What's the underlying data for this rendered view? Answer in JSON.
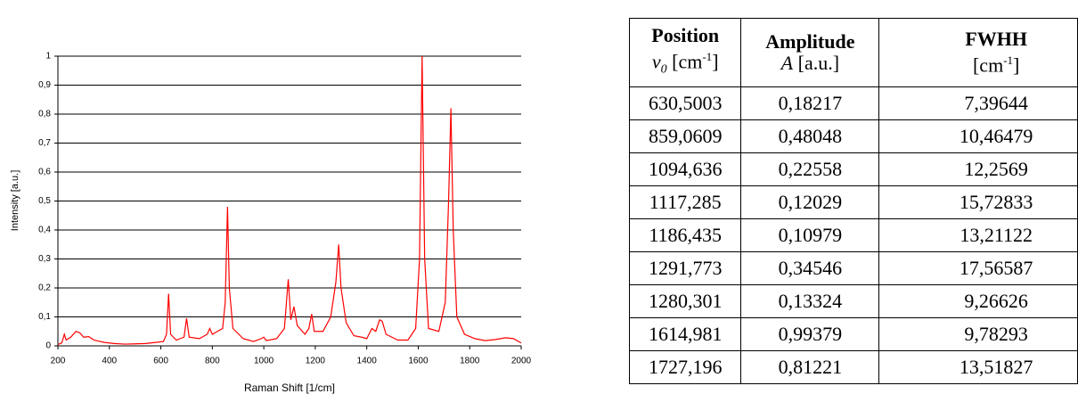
{
  "chart_data": {
    "type": "line",
    "xlabel": "Raman Shift [1/cm]",
    "ylabel": "Intensity [a.u.]",
    "xlim": [
      200,
      2000
    ],
    "xticks": [
      200,
      400,
      600,
      800,
      1000,
      1200,
      1400,
      1600,
      1800,
      2000
    ],
    "ylim": [
      0,
      1
    ],
    "yticks": [
      0,
      {
        "value": 0.1,
        "label": "0,1"
      },
      {
        "value": 0.2,
        "label": "0,2"
      },
      {
        "value": 0.3,
        "label": "0,3"
      },
      {
        "value": 0.4,
        "label": "0,4"
      },
      {
        "value": 0.5,
        "label": "0,5"
      },
      {
        "value": 0.6,
        "label": "0,6"
      },
      {
        "value": 0.7,
        "label": "0,7"
      },
      {
        "value": 0.8,
        "label": "0,8"
      },
      {
        "value": 0.9,
        "label": "0,9"
      },
      1
    ],
    "grid": true,
    "x": [
      200,
      215,
      225,
      232,
      250,
      270,
      285,
      300,
      320,
      340,
      380,
      420,
      460,
      500,
      540,
      580,
      610,
      622,
      630,
      638,
      660,
      690,
      700,
      710,
      750,
      780,
      790,
      800,
      820,
      840,
      850,
      859,
      866,
      880,
      920,
      960,
      990,
      1000,
      1010,
      1050,
      1080,
      1095,
      1105,
      1117,
      1130,
      1160,
      1175,
      1186,
      1196,
      1230,
      1260,
      1280,
      1291,
      1300,
      1320,
      1350,
      1380,
      1400,
      1420,
      1435,
      1450,
      1460,
      1475,
      1520,
      1560,
      1590,
      1605,
      1615,
      1625,
      1640,
      1680,
      1705,
      1718,
      1727,
      1736,
      1750,
      1780,
      1820,
      1860,
      1900,
      1940,
      1970,
      2000
    ],
    "series": [
      {
        "color": "#ff0000",
        "values": [
          0.005,
          0.01,
          0.04,
          0.02,
          0.03,
          0.05,
          0.045,
          0.03,
          0.032,
          0.02,
          0.012,
          0.008,
          0.006,
          0.007,
          0.008,
          0.012,
          0.015,
          0.04,
          0.18,
          0.04,
          0.02,
          0.03,
          0.095,
          0.03,
          0.025,
          0.04,
          0.06,
          0.04,
          0.05,
          0.06,
          0.15,
          0.48,
          0.2,
          0.06,
          0.025,
          0.015,
          0.025,
          0.03,
          0.018,
          0.025,
          0.06,
          0.23,
          0.09,
          0.135,
          0.07,
          0.04,
          0.06,
          0.11,
          0.05,
          0.05,
          0.1,
          0.22,
          0.35,
          0.2,
          0.08,
          0.035,
          0.03,
          0.025,
          0.06,
          0.05,
          0.09,
          0.085,
          0.04,
          0.02,
          0.02,
          0.06,
          0.3,
          1.0,
          0.3,
          0.06,
          0.05,
          0.15,
          0.5,
          0.82,
          0.4,
          0.1,
          0.04,
          0.025,
          0.018,
          0.022,
          0.028,
          0.025,
          0.01
        ]
      }
    ]
  },
  "table": {
    "header": [
      {
        "title": "Position",
        "line2": [
          {
            "text": "v",
            "style": "italic"
          },
          {
            "text": "0",
            "style": "sub"
          },
          {
            "text": " [cm",
            "style": "normal"
          },
          {
            "text": "-1",
            "style": "sup"
          },
          {
            "text": "]",
            "style": "normal"
          }
        ]
      },
      {
        "title": "Amplitude",
        "line2": [
          {
            "text": "A",
            "style": "italic"
          },
          {
            "text": " [a.u.]",
            "style": "normal"
          }
        ]
      },
      {
        "title": "FWHH",
        "line2": [
          {
            "text": "[cm",
            "style": "normal"
          },
          {
            "text": "-1",
            "style": "sup"
          },
          {
            "text": "]",
            "style": "normal"
          }
        ]
      }
    ],
    "rows": [
      [
        "630,5003",
        "0,18217",
        "7,39644"
      ],
      [
        "859,0609",
        "0,48048",
        "10,46479"
      ],
      [
        "1094,636",
        "0,22558",
        "12,2569"
      ],
      [
        "1117,285",
        "0,12029",
        "15,72833"
      ],
      [
        "1186,435",
        "0,10979",
        "13,21122"
      ],
      [
        "1291,773",
        "0,34546",
        "17,56587"
      ],
      [
        "1280,301",
        "0,13324",
        "9,26626"
      ],
      [
        "1614,981",
        "0,99379",
        "9,78293"
      ],
      [
        "1727,196",
        "0,81221",
        "13,51827"
      ]
    ]
  }
}
